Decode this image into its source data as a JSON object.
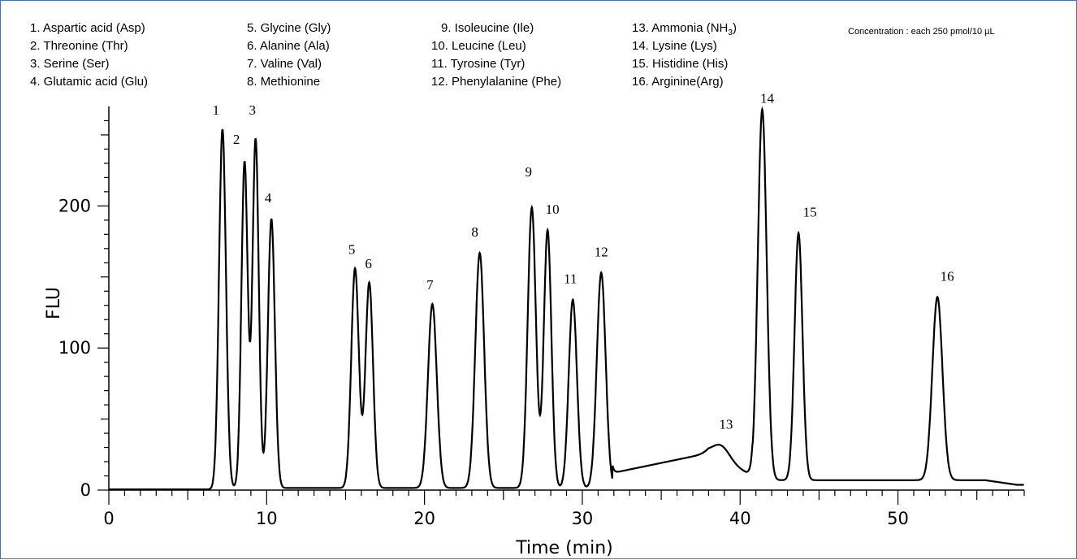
{
  "chart_data": {
    "type": "line",
    "xlabel": "Time (min)",
    "ylabel": "FLU",
    "xlim": [
      0,
      58
    ],
    "ylim": [
      0,
      270
    ],
    "xticks": [
      0,
      10,
      20,
      30,
      40,
      50
    ],
    "yticks": [
      0,
      100,
      200
    ],
    "note": "Concentration : each 250 pmol/10 µL",
    "legend_columns": [
      [
        "1. Aspartic acid (Asp)",
        "2. Threonine (Thr)",
        "3. Serine (Ser)",
        "4. Glutamic acid (Glu)"
      ],
      [
        "5. Glycine (Gly)",
        "6. Alanine (Ala)",
        "7. Valine (Val)",
        "8. Methionine"
      ],
      [
        "9. Isoleucine (Ile)",
        "10. Leucine (Leu)",
        "11. Tyrosine (Tyr)",
        "12. Phenylalanine (Phe)"
      ],
      [
        "13. Ammonia (NH3)",
        "14. Lysine (Lys)",
        "15. Histidine (His)",
        "16. Arginine(Arg)"
      ]
    ],
    "peaks": [
      {
        "label": "1",
        "x": 7.2,
        "y": 254
      },
      {
        "label": "2",
        "x": 8.6,
        "y": 231
      },
      {
        "label": "3",
        "x": 9.3,
        "y": 247
      },
      {
        "label": "4",
        "x": 10.3,
        "y": 191
      },
      {
        "label": "5",
        "x": 15.6,
        "y": 156
      },
      {
        "label": "6",
        "x": 16.5,
        "y": 146
      },
      {
        "label": "7",
        "x": 20.5,
        "y": 131
      },
      {
        "label": "8",
        "x": 23.5,
        "y": 167
      },
      {
        "label": "9",
        "x": 26.8,
        "y": 199
      },
      {
        "label": "10",
        "x": 27.8,
        "y": 183
      },
      {
        "label": "11",
        "x": 29.4,
        "y": 134
      },
      {
        "label": "12",
        "x": 31.2,
        "y": 153
      },
      {
        "label": "13",
        "x": 38.8,
        "y": 34
      },
      {
        "label": "14",
        "x": 41.4,
        "y": 268
      },
      {
        "label": "15",
        "x": 43.7,
        "y": 181
      },
      {
        "label": "16",
        "x": 52.5,
        "y": 136
      }
    ]
  }
}
